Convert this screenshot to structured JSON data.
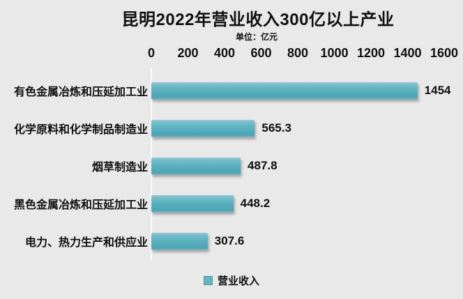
{
  "title": "昆明2022年营业收入300亿以上产业",
  "subtitle": "单位：亿元",
  "legend": {
    "label": "营业收入"
  },
  "colors": {
    "background": "#e9e9e9",
    "bar": "#55adbb",
    "bar_highlight": "#a6c2da",
    "text": "#0f0f0f",
    "legend_swatch": "#66b6c2"
  },
  "chart_data": {
    "type": "bar",
    "orientation": "horizontal",
    "title": "昆明2022年营业收入300亿以上产业",
    "unit_label": "单位：亿元",
    "categories": [
      "有色金属冶炼和压延加工业",
      "化学原料和化学制品制造业",
      "烟草制造业",
      "黑色金属冶炼和压延加工业",
      "电力、热力生产和供应业"
    ],
    "values": [
      1454,
      565.3,
      487.8,
      448.2,
      307.6
    ],
    "value_labels": [
      "1454",
      "565.3",
      "487.8",
      "448.2",
      "307.6"
    ],
    "series_name": "营业收入",
    "xlabel": "",
    "ylabel": "",
    "xlim": [
      0,
      1600
    ],
    "x_ticks": [
      0,
      200,
      400,
      600,
      800,
      1000,
      1200,
      1400,
      1600
    ],
    "grid": false,
    "legend_position": "bottom"
  }
}
